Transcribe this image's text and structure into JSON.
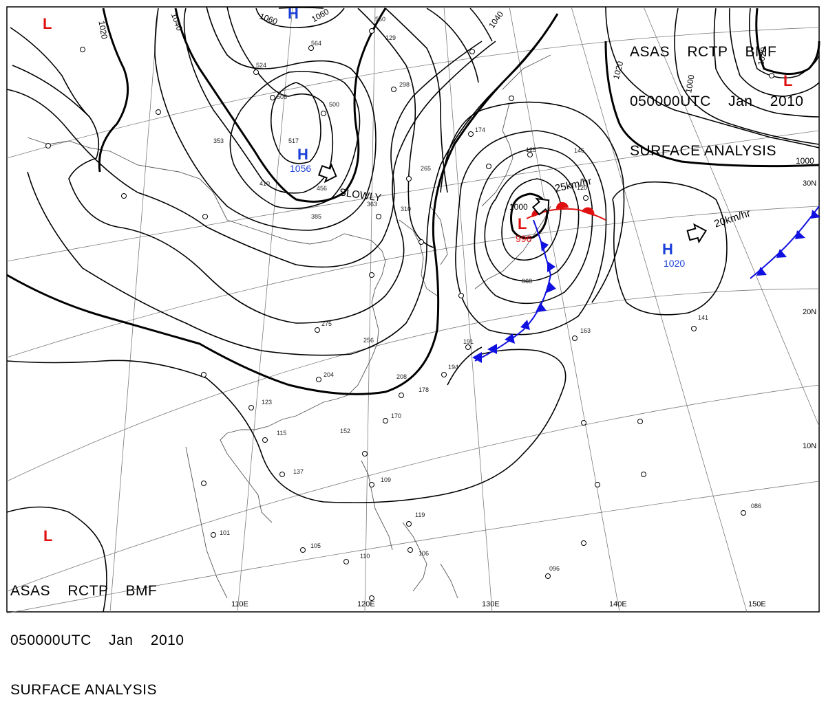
{
  "title_block": {
    "line1": "ASAS    RCTP    BMF",
    "line2": "050000UTC    Jan    2010",
    "line3": "SURFACE ANALYSIS"
  },
  "longitude_labels": [
    "110E",
    "120E",
    "130E",
    "140E",
    "150E"
  ],
  "latitude_labels": [
    "30N",
    "20N",
    "10N"
  ],
  "isobar_labels": [
    "1020",
    "1040",
    "1060",
    "1060",
    "1020",
    "1000",
    "1000",
    "1000",
    "1020",
    "1040"
  ],
  "pressure_centers": [
    {
      "type": "H",
      "value": "",
      "color": "#1a3fd8"
    },
    {
      "type": "H",
      "value": "1056",
      "color": "#1a3fd8"
    },
    {
      "type": "H",
      "value": "1020",
      "color": "#1a3fd8"
    },
    {
      "type": "L",
      "value": "996",
      "color": "#e01010"
    },
    {
      "type": "L",
      "value": "",
      "color": "#e01010"
    },
    {
      "type": "L",
      "value": "",
      "color": "#e01010"
    },
    {
      "type": "L",
      "value": "",
      "color": "#e01010"
    }
  ],
  "motion_labels": [
    "SLOWLY",
    "25km/hr",
    "20km/hr"
  ],
  "station_numbers": [
    "550",
    "564",
    "524",
    "508",
    "500",
    "517",
    "456",
    "385",
    "410",
    "363",
    "353",
    "310",
    "298",
    "275",
    "256",
    "265",
    "208",
    "204",
    "194",
    "191",
    "178",
    "174",
    "170",
    "163",
    "152",
    "146",
    "141",
    "137",
    "129",
    "125",
    "123",
    "120",
    "119",
    "115",
    "110",
    "109",
    "106",
    "105",
    "101",
    "096",
    "086",
    "068"
  ],
  "colors": {
    "high": "#1a3fd8",
    "low": "#e01010",
    "cold_front": "#1010e0",
    "warm_front": "#e01010",
    "isobar": "#000000",
    "grid": "#888888"
  }
}
